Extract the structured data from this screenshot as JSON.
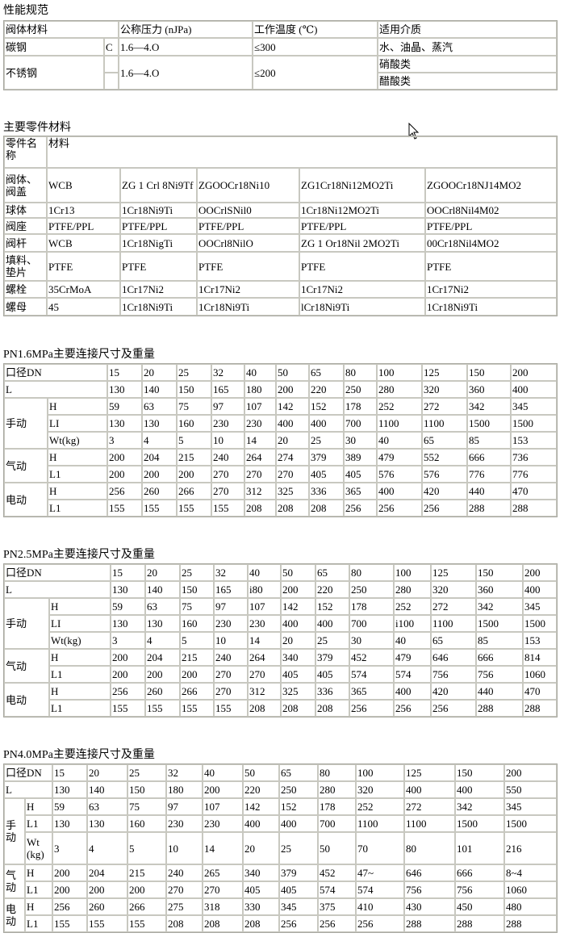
{
  "performance": {
    "title": "性能规范",
    "headers": [
      "阀体材料",
      "公称压力 (nJPa)",
      "工作温度 (℃)",
      "适用介质"
    ],
    "carbon": {
      "material": "碳钢",
      "grade": "C",
      "pressure": "1.6—4.O",
      "temp": "≤300",
      "media": "水、油晶、蒸汽"
    },
    "stainless": {
      "material": "不锈钢",
      "grade": "",
      "pressure": "1.6—4.O",
      "temp": "≤200",
      "media": [
        "硝酸类",
        "醋酸类"
      ]
    }
  },
  "parts": {
    "title": "主要零件材料",
    "headers": [
      "零件名称",
      "材料"
    ],
    "rows": [
      {
        "name": "阀体、阀盖",
        "values": [
          "WCB",
          "ZG 1 Crl 8Ni9Tf",
          "ZGOOCr18Ni10",
          "ZG1Cr18Ni12MO2Ti",
          "ZGOOCr18NJ14MO2"
        ]
      },
      {
        "name": "球体",
        "values": [
          "1Cr13",
          "1Cr18Ni9Ti",
          "OOCrlSNil0",
          "1Cr18Ni12MO2Ti",
          "OOCrl8Nil4M02"
        ]
      },
      {
        "name": "阀座",
        "values": [
          "PTFE/PPL",
          "PTFE/PPL",
          "PTFE/PPL",
          "PTFE/PPL",
          "PTFE/PPL"
        ]
      },
      {
        "name": "阀杆",
        "values": [
          "WCB",
          "1Cr18NigTi",
          "OOCrl8NilO",
          "ZG 1 Or18Nil 2MO2Ti",
          "00Cr18Nil4MO2"
        ]
      },
      {
        "name": "填料、垫片",
        "values": [
          "PTFE",
          "PTFE",
          "PTFE",
          "PTFE",
          "PTFE"
        ]
      },
      {
        "name": "螺栓",
        "values": [
          "35CrMoA",
          "1Cr17Ni2",
          "1Cr17Ni2",
          "1Cr17Ni2",
          "1Cr17Ni2"
        ]
      },
      {
        "name": "螺母",
        "values": [
          "45",
          "1Cr18Ni9Ti",
          "1Cr18Ni9Ti",
          "lCr18Ni9Ti",
          "1Cr18Ni9Ti"
        ]
      }
    ]
  },
  "dimension_tables": [
    {
      "title": "PN1.6MPa主要连接尺寸及重量",
      "dn_label": "口径DN",
      "l_label": "L",
      "dn": [
        "15",
        "20",
        "25",
        "32",
        "40",
        "50",
        "65",
        "80",
        "100",
        "125",
        "150",
        "200"
      ],
      "L": [
        "130",
        "140",
        "150",
        "165",
        "180",
        "200",
        "220",
        "250",
        "280",
        "320",
        "360",
        "400"
      ],
      "groups": [
        {
          "label": "手动",
          "rows": [
            {
              "label": "H",
              "values": [
                "59",
                "63",
                "75",
                "97",
                "107",
                "142",
                "152",
                "178",
                "252",
                "272",
                "342",
                "345"
              ]
            },
            {
              "label": "LI",
              "values": [
                "130",
                "130",
                "160",
                "230",
                "230",
                "400",
                "400",
                "700",
                "1100",
                "1100",
                "1500",
                "1500"
              ]
            },
            {
              "label": "Wt(kg)",
              "values": [
                "3",
                "4",
                "5",
                "10",
                "14",
                "20",
                "25",
                "30",
                "40",
                "65",
                "85",
                "153"
              ]
            }
          ]
        },
        {
          "label": "气动",
          "rows": [
            {
              "label": "H",
              "values": [
                "200",
                "204",
                "215",
                "240",
                "264",
                "274",
                "379",
                "389",
                "479",
                "552",
                "666",
                "736"
              ]
            },
            {
              "label": "L1",
              "values": [
                "200",
                "200",
                "200",
                "270",
                "270",
                "270",
                "405",
                "405",
                "576",
                "576",
                "776",
                "776"
              ]
            }
          ]
        },
        {
          "label": "电动",
          "rows": [
            {
              "label": "H",
              "values": [
                "256",
                "260",
                "266",
                "270",
                "312",
                "325",
                "336",
                "365",
                "400",
                "420",
                "440",
                "470"
              ]
            },
            {
              "label": "L1",
              "values": [
                "155",
                "155",
                "155",
                "155",
                "208",
                "208",
                "208",
                "256",
                "256",
                "256",
                "288",
                "288"
              ]
            }
          ]
        }
      ]
    },
    {
      "title": "PN2.5MPa主要连接尺寸及重量",
      "dn_label": "口径DN",
      "l_label": "L",
      "dn": [
        "15",
        "20",
        "25",
        "32",
        "40",
        "50",
        "65",
        "80",
        "100",
        "125",
        "150",
        "200"
      ],
      "L": [
        "130",
        "140",
        "150",
        "165",
        "i80",
        "200",
        "220",
        "250",
        "280",
        "320",
        "360",
        "400"
      ],
      "groups": [
        {
          "label": "手动",
          "rows": [
            {
              "label": "H",
              "values": [
                "59",
                "63",
                "75",
                "97",
                "107",
                "142",
                "152",
                "178",
                "252",
                "272",
                "342",
                "345"
              ]
            },
            {
              "label": "LI",
              "values": [
                "130",
                "130",
                "160",
                "230",
                "230",
                "400",
                "400",
                "700",
                "i100",
                "1100",
                "1500",
                "1500"
              ]
            },
            {
              "label": "Wt(kg)",
              "values": [
                "3",
                "4",
                "5",
                "10",
                "14",
                "20",
                "25",
                "30",
                "40",
                "65",
                "85",
                "153"
              ]
            }
          ]
        },
        {
          "label": "气动",
          "rows": [
            {
              "label": "H",
              "values": [
                "200",
                "204",
                "215",
                "240",
                "264",
                "340",
                "379",
                "452",
                "479",
                "646",
                "666",
                "814"
              ]
            },
            {
              "label": "L1",
              "values": [
                "200",
                "200",
                "200",
                "270",
                "270",
                "405",
                "405",
                "574",
                "574",
                "756",
                "756",
                "1060"
              ]
            }
          ]
        },
        {
          "label": "电动",
          "rows": [
            {
              "label": "H",
              "values": [
                "256",
                "260",
                "266",
                "270",
                "312",
                "325",
                "336",
                "365",
                "400",
                "420",
                "440",
                "470"
              ]
            },
            {
              "label": "L1",
              "values": [
                "155",
                "155",
                "155",
                "155",
                "208",
                "208",
                "208",
                "256",
                "256",
                "256",
                "288",
                "288"
              ]
            }
          ]
        }
      ]
    },
    {
      "title": "PN4.0MPa主要连接尺寸及重量",
      "dn_label": "口径DN",
      "l_label": "L",
      "dn": [
        "15",
        "20",
        "25",
        "32",
        "40",
        "50",
        "65",
        "80",
        "100",
        "125",
        "150",
        "200"
      ],
      "L": [
        "130",
        "140",
        "150",
        "180",
        "200",
        "220",
        "250",
        "280",
        "320",
        "400",
        "400",
        "550"
      ],
      "groups": [
        {
          "label": "手动",
          "rows": [
            {
              "label": "H",
              "values": [
                "59",
                "63",
                "75",
                "97",
                "107",
                "142",
                "152",
                "178",
                "252",
                "272",
                "342",
                "345"
              ]
            },
            {
              "label": "L1",
              "values": [
                "130",
                "130",
                "160",
                "230",
                "230",
                "400",
                "400",
                "700",
                "1100",
                "1100",
                "1500",
                "1500"
              ]
            },
            {
              "label": "Wt (kg)",
              "values": [
                "3",
                "4",
                "5",
                "10",
                "14",
                "20",
                "25",
                "50",
                "70",
                "80",
                "101",
                "216"
              ]
            }
          ]
        },
        {
          "label": "气动",
          "rows": [
            {
              "label": "H",
              "values": [
                "200",
                "204",
                "215",
                "240",
                "265",
                "340",
                "379",
                "452",
                "47~",
                "646",
                "666",
                "8~4"
              ]
            },
            {
              "label": "L1",
              "values": [
                "200",
                "200",
                "200",
                "270",
                "270",
                "405",
                "405",
                "574",
                "574",
                "756",
                "756",
                "1060"
              ]
            }
          ]
        },
        {
          "label": "电动",
          "rows": [
            {
              "label": "H",
              "values": [
                "256",
                "260",
                "266",
                "275",
                "318",
                "330",
                "345",
                "375",
                "410",
                "430",
                "450",
                "480"
              ]
            },
            {
              "label": "L1",
              "values": [
                "155",
                "155",
                "155",
                "208",
                "208",
                "208",
                "256",
                "256",
                "256",
                "288",
                "288",
                "288"
              ]
            }
          ]
        }
      ]
    }
  ]
}
